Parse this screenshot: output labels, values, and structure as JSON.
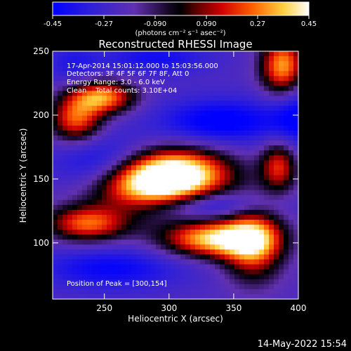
{
  "chart_data": {
    "type": "heatmap",
    "title": "Reconstructed RHESSI Image",
    "xlabel": "Heliocentric X (arcsec)",
    "ylabel": "Heliocentric Y (arcsec)",
    "xlim": [
      210,
      400
    ],
    "ylim": [
      56,
      250
    ],
    "xticks": [
      250,
      300,
      350,
      400
    ],
    "yticks": [
      100,
      150,
      200,
      250
    ],
    "colorbar": {
      "ticks": [
        "-0.45",
        "-0.27",
        "-0.090",
        "0.090",
        "0.27",
        "0.45"
      ],
      "range": [
        -0.45,
        0.45
      ],
      "unit_label": "(photons cm⁻² s⁻¹ asec⁻²)",
      "colormap": [
        "#0000ff",
        "#5a2ab0",
        "#1a0830",
        "#000000",
        "#7a0000",
        "#e01000",
        "#ff7a00",
        "#ffff7a",
        "#ffffff"
      ]
    },
    "annotations": {
      "time": "17-Apr-2014 15:01:12.000 to 15:03:56.000",
      "detectors": "Detectors: 3F 4F 5F 6F 7F 8F, Att 0",
      "energy": "Energy Range: 3.0 - 6.0 keV",
      "method": "Clean    Total counts: 3.10E+04",
      "peak": "Position of Peak = [300,154]"
    },
    "sources": [
      {
        "x": 305,
        "y": 154,
        "peak": 0.45,
        "sx": 30,
        "sy": 14
      },
      {
        "x": 280,
        "y": 145,
        "peak": 0.3,
        "sx": 30,
        "sy": 15
      },
      {
        "x": 335,
        "y": 103,
        "peak": 0.38,
        "sx": 28,
        "sy": 10
      },
      {
        "x": 365,
        "y": 100,
        "peak": 0.28,
        "sx": 16,
        "sy": 20
      },
      {
        "x": 248,
        "y": 214,
        "peak": 0.3,
        "sx": 18,
        "sy": 9
      },
      {
        "x": 228,
        "y": 196,
        "peak": 0.22,
        "sx": 14,
        "sy": 12
      },
      {
        "x": 388,
        "y": 238,
        "peak": 0.33,
        "sx": 12,
        "sy": 16
      },
      {
        "x": 237,
        "y": 115,
        "peak": 0.24,
        "sx": 22,
        "sy": 10
      },
      {
        "x": 385,
        "y": 160,
        "peak": 0.18,
        "sx": 10,
        "sy": 14
      },
      {
        "x": 255,
        "y": 160,
        "peak": -0.38,
        "sx": 28,
        "sy": 15
      },
      {
        "x": 340,
        "y": 195,
        "peak": -0.33,
        "sx": 35,
        "sy": 13
      },
      {
        "x": 330,
        "y": 130,
        "peak": -0.3,
        "sx": 35,
        "sy": 8
      },
      {
        "x": 255,
        "y": 80,
        "peak": -0.28,
        "sx": 40,
        "sy": 12
      },
      {
        "x": 400,
        "y": 200,
        "peak": -0.28,
        "sx": 15,
        "sy": 20
      },
      {
        "x": 290,
        "y": 245,
        "peak": -0.25,
        "sx": 30,
        "sy": 9
      },
      {
        "x": 225,
        "y": 240,
        "peak": -0.2,
        "sx": 15,
        "sy": 12
      }
    ]
  },
  "footer": {
    "date": "14-May-2022 15:54"
  }
}
